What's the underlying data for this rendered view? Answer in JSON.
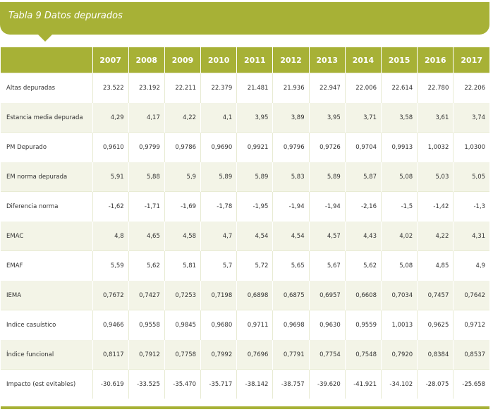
{
  "title": "Tabla 9 Datos depurados",
  "accent_color": "#a7b136",
  "years": [
    "2007",
    "2008",
    "2009",
    "2010",
    "2011",
    "2012",
    "2013",
    "2014",
    "2015",
    "2016",
    "2017"
  ],
  "rows": [
    {
      "label": "Altas depuradas",
      "values": [
        "23.522",
        "23.192",
        "22.211",
        "22.379",
        "21.481",
        "21.936",
        "22.947",
        "22.006",
        "22.614",
        "22.780",
        "22.206"
      ]
    },
    {
      "label": "Estancia media depurada",
      "values": [
        "4,29",
        "4,17",
        "4,22",
        "4,1",
        "3,95",
        "3,89",
        "3,95",
        "3,71",
        "3,58",
        "3,61",
        "3,74"
      ]
    },
    {
      "label": "PM Depurado",
      "values": [
        "0,9610",
        "0,9799",
        "0,9786",
        "0,9690",
        "0,9921",
        "0,9796",
        "0,9726",
        "0,9704",
        "0,9913",
        "1,0032",
        "1,0300"
      ]
    },
    {
      "label": "EM norma depurada",
      "values": [
        "5,91",
        "5,88",
        "5,9",
        "5,89",
        "5,89",
        "5,83",
        "5,89",
        "5,87",
        "5,08",
        "5,03",
        "5,05"
      ]
    },
    {
      "label": "Diferencia norma",
      "values": [
        "-1,62",
        "-1,71",
        "-1,69",
        "-1,78",
        "-1,95",
        "-1,94",
        "-1,94",
        "-2,16",
        "-1,5",
        "-1,42",
        "-1,3"
      ]
    },
    {
      "label": "EMAC",
      "values": [
        "4,8",
        "4,65",
        "4,58",
        "4,7",
        "4,54",
        "4,54",
        "4,57",
        "4,43",
        "4,02",
        "4,22",
        "4,31"
      ]
    },
    {
      "label": "EMAF",
      "values": [
        "5,59",
        "5,62",
        "5,81",
        "5,7",
        "5,72",
        "5,65",
        "5,67",
        "5,62",
        "5,08",
        "4,85",
        "4,9"
      ]
    },
    {
      "label": "IEMA",
      "values": [
        "0,7672",
        "0,7427",
        "0,7253",
        "0,7198",
        "0,6898",
        "0,6875",
        "0,6957",
        "0,6608",
        "0,7034",
        "0,7457",
        "0,7642"
      ]
    },
    {
      "label": "Indice casuístico",
      "values": [
        "0,9466",
        "0,9558",
        "0,9845",
        "0,9680",
        "0,9711",
        "0,9698",
        "0,9630",
        "0,9559",
        "1,0013",
        "0,9625",
        "0,9712"
      ]
    },
    {
      "label": "Índice funcional",
      "values": [
        "0,8117",
        "0,7912",
        "0,7758",
        "0,7992",
        "0,7696",
        "0,7791",
        "0,7754",
        "0,7548",
        "0,7920",
        "0,8384",
        "0,8537"
      ]
    },
    {
      "label": "Impacto (est evitables)",
      "values": [
        "-30.619",
        "-33.525",
        "-35.470",
        "-35.717",
        "-38.142",
        "-38.757",
        "-39.620",
        "-41.921",
        "-34.102",
        "-28.075",
        "-25.658"
      ]
    }
  ]
}
